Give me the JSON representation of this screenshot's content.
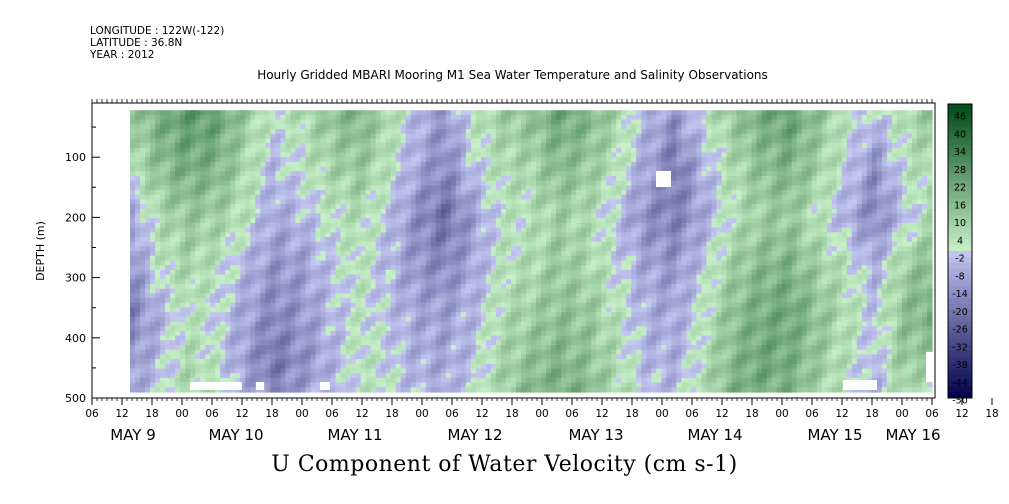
{
  "header": {
    "longitude": "LONGITUDE : 122W(-122)",
    "latitude": "LATITUDE : 36.8N",
    "year": "YEAR : 2012"
  },
  "title": "Hourly Gridded MBARI Mooring M1 Sea Water Temperature and Salinity Observations",
  "variable_title": "U Component of Water Velocity (cm s-1)",
  "colors": {
    "negative_low": "#00004a",
    "negative_high": "#c4c8f2",
    "positive_low": "#c8f0c8",
    "positive_high": "#004a14",
    "missing": "#ffffff"
  },
  "chart_data": {
    "type": "heatmap",
    "title": "Hourly Gridded MBARI Mooring M1 Sea Water Temperature and Salinity Observations",
    "xlabel": "",
    "ylabel": "DEPTH (m)",
    "y_axis": {
      "reversed": true,
      "range": [
        0,
        500
      ],
      "tick_values": [
        100,
        200,
        300,
        400,
        500
      ],
      "tick_labels": [
        "100",
        "200",
        "300",
        "400",
        "500"
      ]
    },
    "x_axis": {
      "hour_labels": [
        "06",
        "12",
        "18",
        "00",
        "06",
        "12",
        "18",
        "00",
        "06",
        "12",
        "18",
        "00",
        "06",
        "12",
        "18",
        "00",
        "06",
        "12",
        "18",
        "00",
        "06",
        "12",
        "18",
        "00",
        "06",
        "12",
        "18",
        "00",
        "06",
        "12",
        "18",
        "00",
        "06"
      ],
      "date_labels": [
        "MAY  9",
        "MAY 10",
        "MAY 11",
        "MAY 12",
        "MAY 13",
        "MAY 14",
        "MAY 15",
        "MAY 16"
      ]
    },
    "colorbar": {
      "labels": [
        "46",
        "40",
        "34",
        "28",
        "22",
        "16",
        "10",
        "4",
        "-2",
        "-8",
        "-14",
        "-20",
        "-26",
        "-32",
        "-38",
        "-44",
        "-50"
      ],
      "range": [
        -50,
        50
      ]
    },
    "depth_profile": [
      {
        "depth": 25,
        "values": [
          10,
          20,
          26,
          24,
          12,
          2,
          6,
          14,
          18,
          8,
          -4,
          -12,
          4,
          10,
          14,
          22,
          18,
          8,
          -4,
          -12,
          2,
          12,
          20,
          24,
          14,
          4,
          -2,
          6,
          12
        ]
      },
      {
        "depth": 120,
        "values": [
          4,
          14,
          20,
          18,
          8,
          -4,
          2,
          8,
          12,
          4,
          -8,
          -16,
          -2,
          6,
          8,
          16,
          12,
          4,
          -8,
          -20,
          -6,
          6,
          14,
          18,
          10,
          0,
          -14,
          2,
          8
        ]
      },
      {
        "depth": 200,
        "values": [
          -10,
          6,
          12,
          10,
          4,
          -8,
          -4,
          2,
          6,
          -2,
          -14,
          -22,
          -10,
          2,
          4,
          10,
          6,
          -2,
          -14,
          -18,
          -8,
          4,
          10,
          12,
          4,
          -6,
          -16,
          -4,
          6
        ]
      },
      {
        "depth": 280,
        "values": [
          -14,
          2,
          8,
          4,
          -4,
          -12,
          -10,
          -2,
          4,
          -4,
          -12,
          -16,
          -8,
          4,
          6,
          12,
          8,
          0,
          -8,
          -12,
          -2,
          10,
          16,
          18,
          10,
          4,
          -6,
          10,
          16
        ]
      },
      {
        "depth": 360,
        "values": [
          -18,
          -6,
          4,
          0,
          -8,
          -16,
          -12,
          -4,
          2,
          -2,
          -8,
          -10,
          -4,
          6,
          10,
          14,
          12,
          4,
          -6,
          -8,
          2,
          14,
          20,
          22,
          14,
          6,
          -2,
          14,
          20
        ]
      },
      {
        "depth": 440,
        "values": [
          -12,
          -4,
          6,
          2,
          -10,
          -20,
          -14,
          -6,
          4,
          0,
          -6,
          -8,
          -2,
          8,
          14,
          18,
          14,
          6,
          -4,
          -6,
          4,
          16,
          22,
          20,
          12,
          4,
          -4,
          12,
          10
        ]
      },
      {
        "depth": 490,
        "values": [
          -8,
          -2,
          8,
          4,
          -6,
          -16,
          -10,
          -4,
          2,
          2,
          -4,
          -6,
          0,
          10,
          16,
          20,
          16,
          8,
          -2,
          -4,
          6,
          18,
          20,
          18,
          10,
          2,
          -6,
          8,
          4
        ]
      }
    ]
  }
}
